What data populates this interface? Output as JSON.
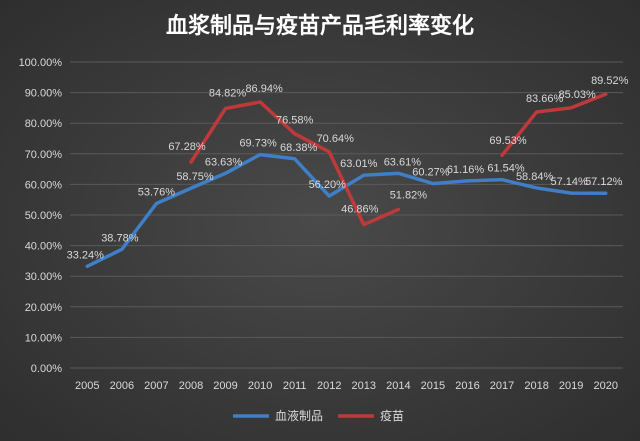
{
  "chart_data": {
    "type": "line",
    "title": "血浆制品与疫苗产品毛利率变化",
    "x": [
      "2005",
      "2006",
      "2007",
      "2008",
      "2009",
      "2010",
      "2011",
      "2012",
      "2013",
      "2014",
      "2015",
      "2016",
      "2017",
      "2018",
      "2019",
      "2020"
    ],
    "ylim": [
      0,
      100
    ],
    "yticks": [
      "0.00%",
      "10.00%",
      "20.00%",
      "30.00%",
      "40.00%",
      "50.00%",
      "60.00%",
      "70.00%",
      "80.00%",
      "90.00%",
      "100.00%"
    ],
    "grid": true,
    "legend_position": "bottom",
    "series": [
      {
        "name": "血液制品",
        "color": "#3f7fc7",
        "values": [
          33.24,
          38.78,
          53.76,
          58.75,
          63.63,
          69.73,
          68.38,
          56.2,
          63.01,
          63.61,
          60.27,
          61.16,
          61.54,
          58.84,
          57.14,
          57.12
        ],
        "labels": [
          "33.24%",
          "38.78%",
          "53.76%",
          "58.75%",
          "63.63%",
          "69.73%",
          "68.38%",
          "56.20%",
          "63.01%",
          "63.61%",
          "60.27%",
          "61.16%",
          "61.54%",
          "58.84%",
          "57.14%",
          "57.12%"
        ]
      },
      {
        "name": "疫苗",
        "color": "#c0393a",
        "values": [
          null,
          null,
          null,
          67.28,
          84.82,
          86.94,
          76.58,
          70.64,
          46.86,
          51.82,
          null,
          null,
          69.53,
          83.66,
          85.03,
          89.52
        ],
        "labels": [
          null,
          null,
          null,
          "67.28%",
          "84.82%",
          "86.94%",
          "76.58%",
          "70.64%",
          "46.86%",
          "51.82%",
          null,
          null,
          "69.53%",
          "83.66%",
          "85.03%",
          "89.52%"
        ]
      }
    ]
  }
}
